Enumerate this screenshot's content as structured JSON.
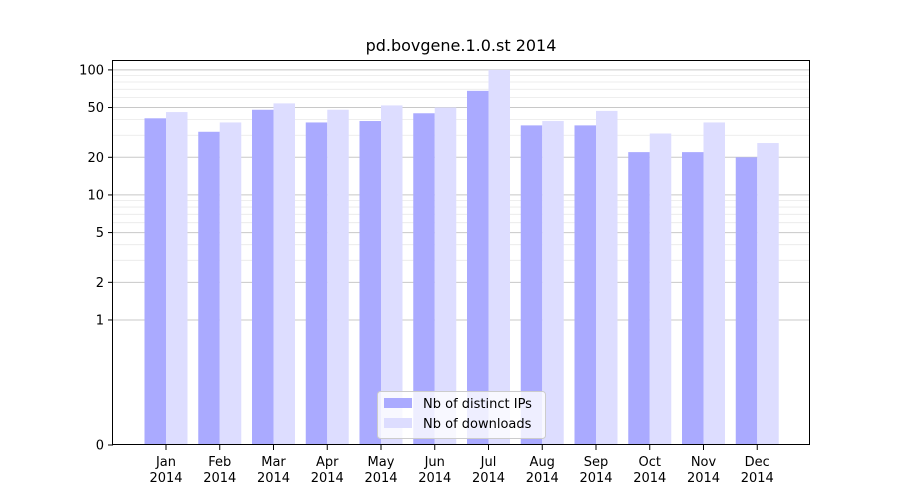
{
  "chart_data": {
    "type": "bar",
    "title": "pd.bovgene.1.0.st 2014",
    "xlabel": "",
    "ylabel": "",
    "y_scale": "symlog",
    "ylim": [
      0,
      120
    ],
    "y_ticks": [
      0,
      1,
      2,
      5,
      10,
      20,
      50,
      100
    ],
    "y_tick_labels": [
      "0",
      "1",
      "2",
      "5",
      "10",
      "20",
      "50",
      "100"
    ],
    "grid": "horizontal",
    "legend_position": "lower center",
    "categories": [
      {
        "month": "Jan",
        "year": "2014"
      },
      {
        "month": "Feb",
        "year": "2014"
      },
      {
        "month": "Mar",
        "year": "2014"
      },
      {
        "month": "Apr",
        "year": "2014"
      },
      {
        "month": "May",
        "year": "2014"
      },
      {
        "month": "Jun",
        "year": "2014"
      },
      {
        "month": "Jul",
        "year": "2014"
      },
      {
        "month": "Aug",
        "year": "2014"
      },
      {
        "month": "Sep",
        "year": "2014"
      },
      {
        "month": "Oct",
        "year": "2014"
      },
      {
        "month": "Nov",
        "year": "2014"
      },
      {
        "month": "Dec",
        "year": "2014"
      }
    ],
    "series": [
      {
        "name": "Nb of distinct IPs",
        "color": "#aaaaff",
        "values": [
          41,
          32,
          48,
          38,
          39,
          45,
          68,
          36,
          36,
          22,
          22,
          20
        ]
      },
      {
        "name": "Nb of downloads",
        "color": "#ddddff",
        "values": [
          46,
          38,
          54,
          48,
          52,
          50,
          100,
          39,
          47,
          31,
          38,
          26
        ]
      }
    ]
  }
}
